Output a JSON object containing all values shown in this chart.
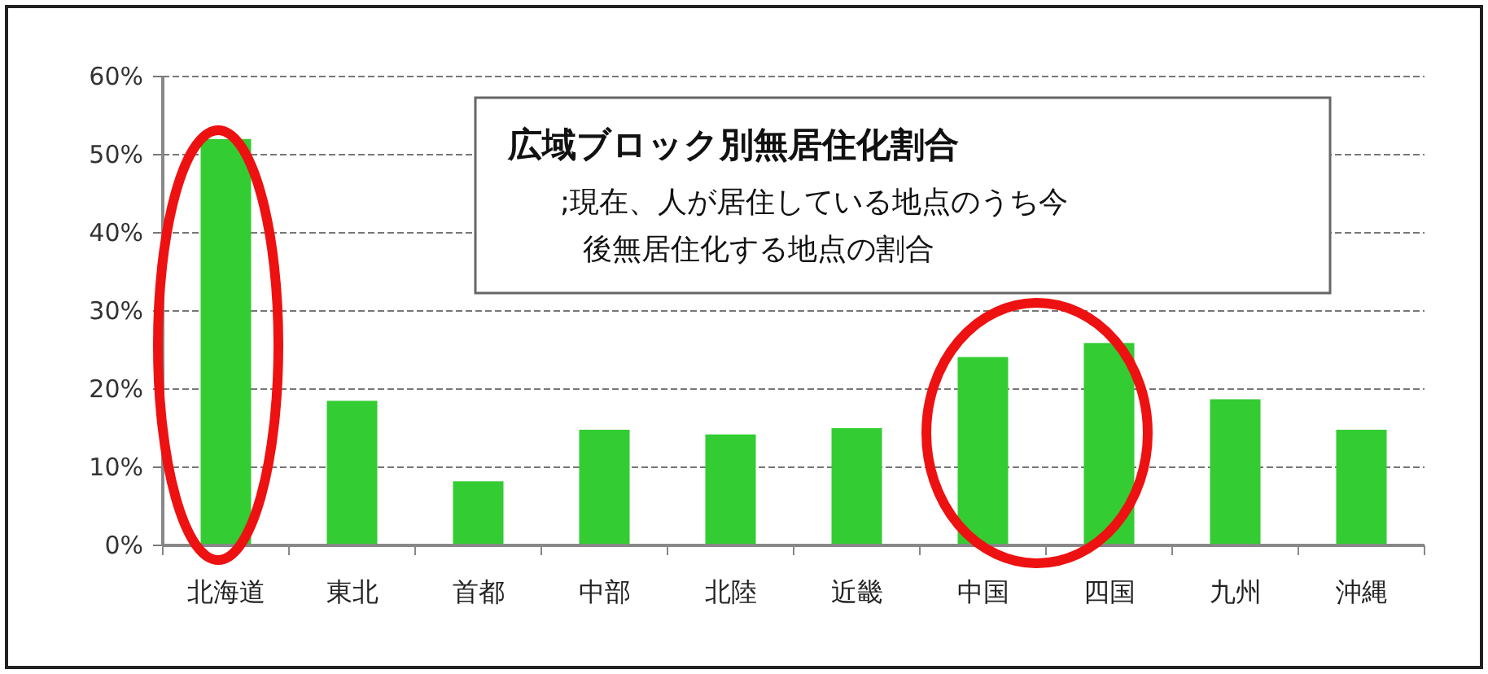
{
  "chart_data": {
    "type": "bar",
    "title": "広域ブロック別無居住化割合",
    "subtitle": ";現在、人が居住している地点のうち今後無居住化する地点の割合",
    "categories": [
      "北海道",
      "東北",
      "首都",
      "中部",
      "北陸",
      "近畿",
      "中国",
      "四国",
      "九州",
      "沖縄"
    ],
    "values": [
      52,
      18.5,
      8.2,
      14.8,
      14.2,
      15.0,
      24.1,
      25.9,
      18.7,
      14.8
    ],
    "color": "#33cc33",
    "ylim": [
      0,
      60
    ],
    "yticks": [
      {
        "value": 0,
        "label": "0%"
      },
      {
        "value": 10,
        "label": "10%"
      },
      {
        "value": 20,
        "label": "20%"
      },
      {
        "value": 30,
        "label": "30%"
      },
      {
        "value": 40,
        "label": "40%"
      },
      {
        "value": 50,
        "label": "50%"
      },
      {
        "value": 60,
        "label": "60%"
      }
    ],
    "grid": "y"
  }
}
